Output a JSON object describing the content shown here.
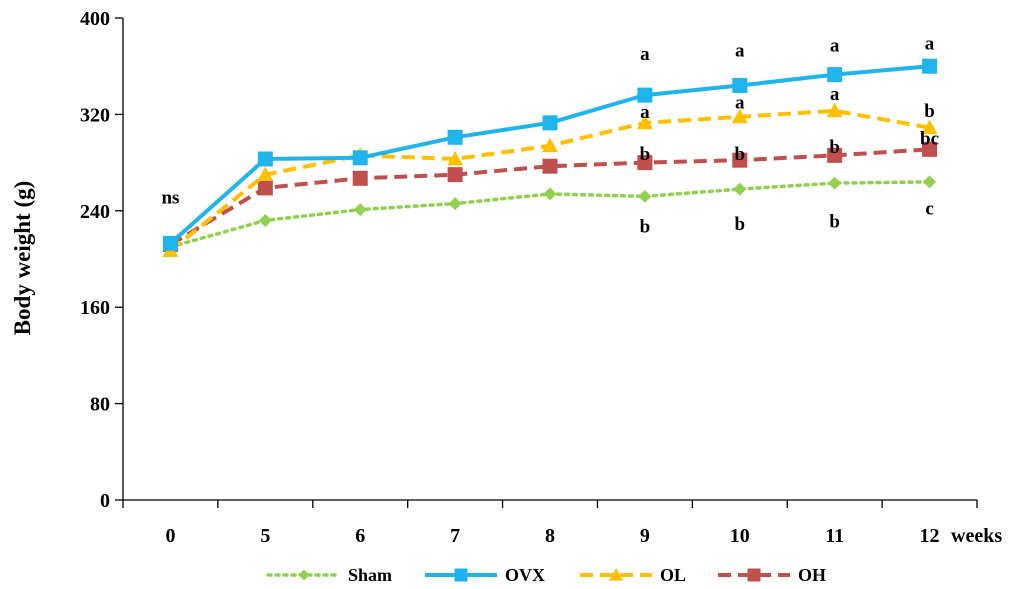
{
  "chart_data": {
    "type": "line",
    "title": "",
    "xlabel": "weeks",
    "ylabel": "Body weight (g)",
    "ylim": [
      0,
      400
    ],
    "yticks": [
      0,
      80,
      160,
      240,
      320,
      400
    ],
    "categories": [
      "0",
      "5",
      "6",
      "7",
      "8",
      "9",
      "10",
      "11",
      "12"
    ],
    "grid": false,
    "legend_position": "bottom",
    "series": [
      {
        "name": "Sham",
        "color": "#92D050",
        "marker": "diamond",
        "line": "dotted",
        "values": [
          210,
          232,
          241,
          246,
          254,
          252,
          258,
          263,
          264
        ]
      },
      {
        "name": "OVX",
        "color": "#1FB5EC",
        "marker": "square",
        "line": "solid",
        "values": [
          213,
          283,
          284,
          301,
          313,
          336,
          344,
          353,
          360
        ]
      },
      {
        "name": "OL",
        "color": "#FFC000",
        "marker": "triangle",
        "line": "dashed",
        "values": [
          207,
          270,
          286,
          283,
          294,
          313,
          318,
          323,
          309
        ]
      },
      {
        "name": "OH",
        "color": "#C0504D",
        "marker": "square",
        "line": "dashed",
        "values": [
          212,
          259,
          267,
          270,
          277,
          280,
          282,
          286,
          291
        ]
      }
    ],
    "annotations": [
      {
        "text": "ns",
        "category": "0",
        "value": 251
      },
      {
        "text": "a",
        "category": "9",
        "value": 370
      },
      {
        "text": "a",
        "category": "10",
        "value": 373
      },
      {
        "text": "a",
        "category": "11",
        "value": 377
      },
      {
        "text": "a",
        "category": "12",
        "value": 379
      },
      {
        "text": "a",
        "category": "9",
        "value": 322
      },
      {
        "text": "a",
        "category": "10",
        "value": 330
      },
      {
        "text": "a",
        "category": "11",
        "value": 337
      },
      {
        "text": "b",
        "category": "12",
        "value": 323
      },
      {
        "text": "b",
        "category": "9",
        "value": 287
      },
      {
        "text": "b",
        "category": "10",
        "value": 287
      },
      {
        "text": "b",
        "category": "11",
        "value": 293
      },
      {
        "text": "bc",
        "category": "12",
        "value": 300
      },
      {
        "text": "b",
        "category": "9",
        "value": 227
      },
      {
        "text": "b",
        "category": "10",
        "value": 229
      },
      {
        "text": "b",
        "category": "11",
        "value": 231
      },
      {
        "text": "c",
        "category": "12",
        "value": 242
      }
    ]
  }
}
